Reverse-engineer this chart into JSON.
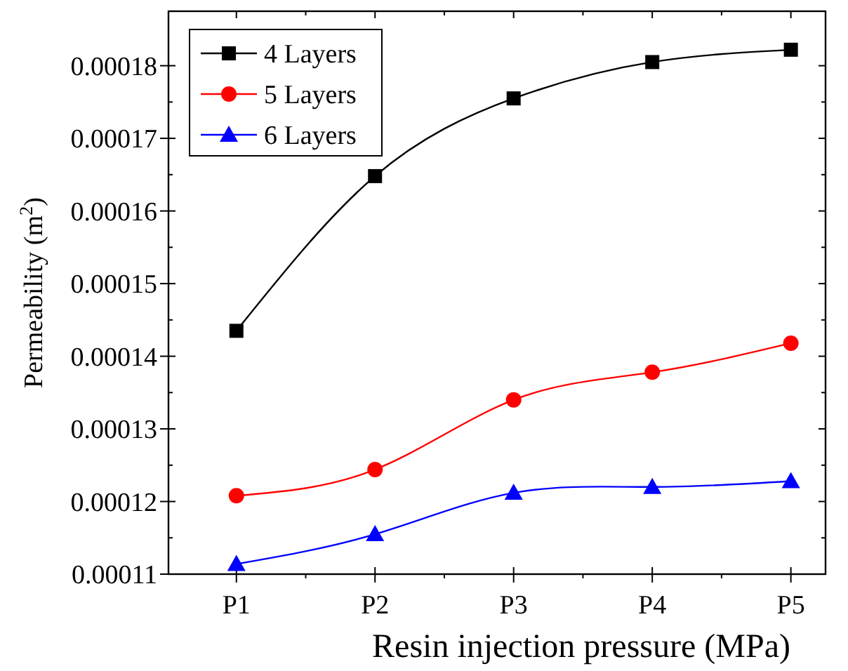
{
  "chart_data": {
    "type": "line",
    "xlabel": "Resin injection pressure (MPa)",
    "ylabel": "Permeability (m$^{2}$)",
    "categories": [
      "P1",
      "P2",
      "P3",
      "P4",
      "P5"
    ],
    "series": [
      {
        "name": "4 Layers",
        "color": "#000000",
        "marker": "square",
        "values": [
          0.0001435,
          0.0001648,
          0.0001755,
          0.0001805,
          0.0001822
        ]
      },
      {
        "name": "5 Layers",
        "color": "#ff0000",
        "marker": "circle",
        "values": [
          0.0001208,
          0.0001244,
          0.000134,
          0.0001378,
          0.0001418
        ]
      },
      {
        "name": "6 Layers",
        "color": "#0000ff",
        "marker": "triangle",
        "values": [
          0.0001114,
          0.0001155,
          0.0001212,
          0.000122,
          0.0001228
        ]
      }
    ],
    "ylim": [
      0.00011,
      0.0001875
    ],
    "yticks": [
      0.00011,
      0.00012,
      0.00013,
      0.00014,
      0.00015,
      0.00016,
      0.00017,
      0.00018
    ],
    "grid": false,
    "legend": "top left",
    "line_style": "solid"
  }
}
